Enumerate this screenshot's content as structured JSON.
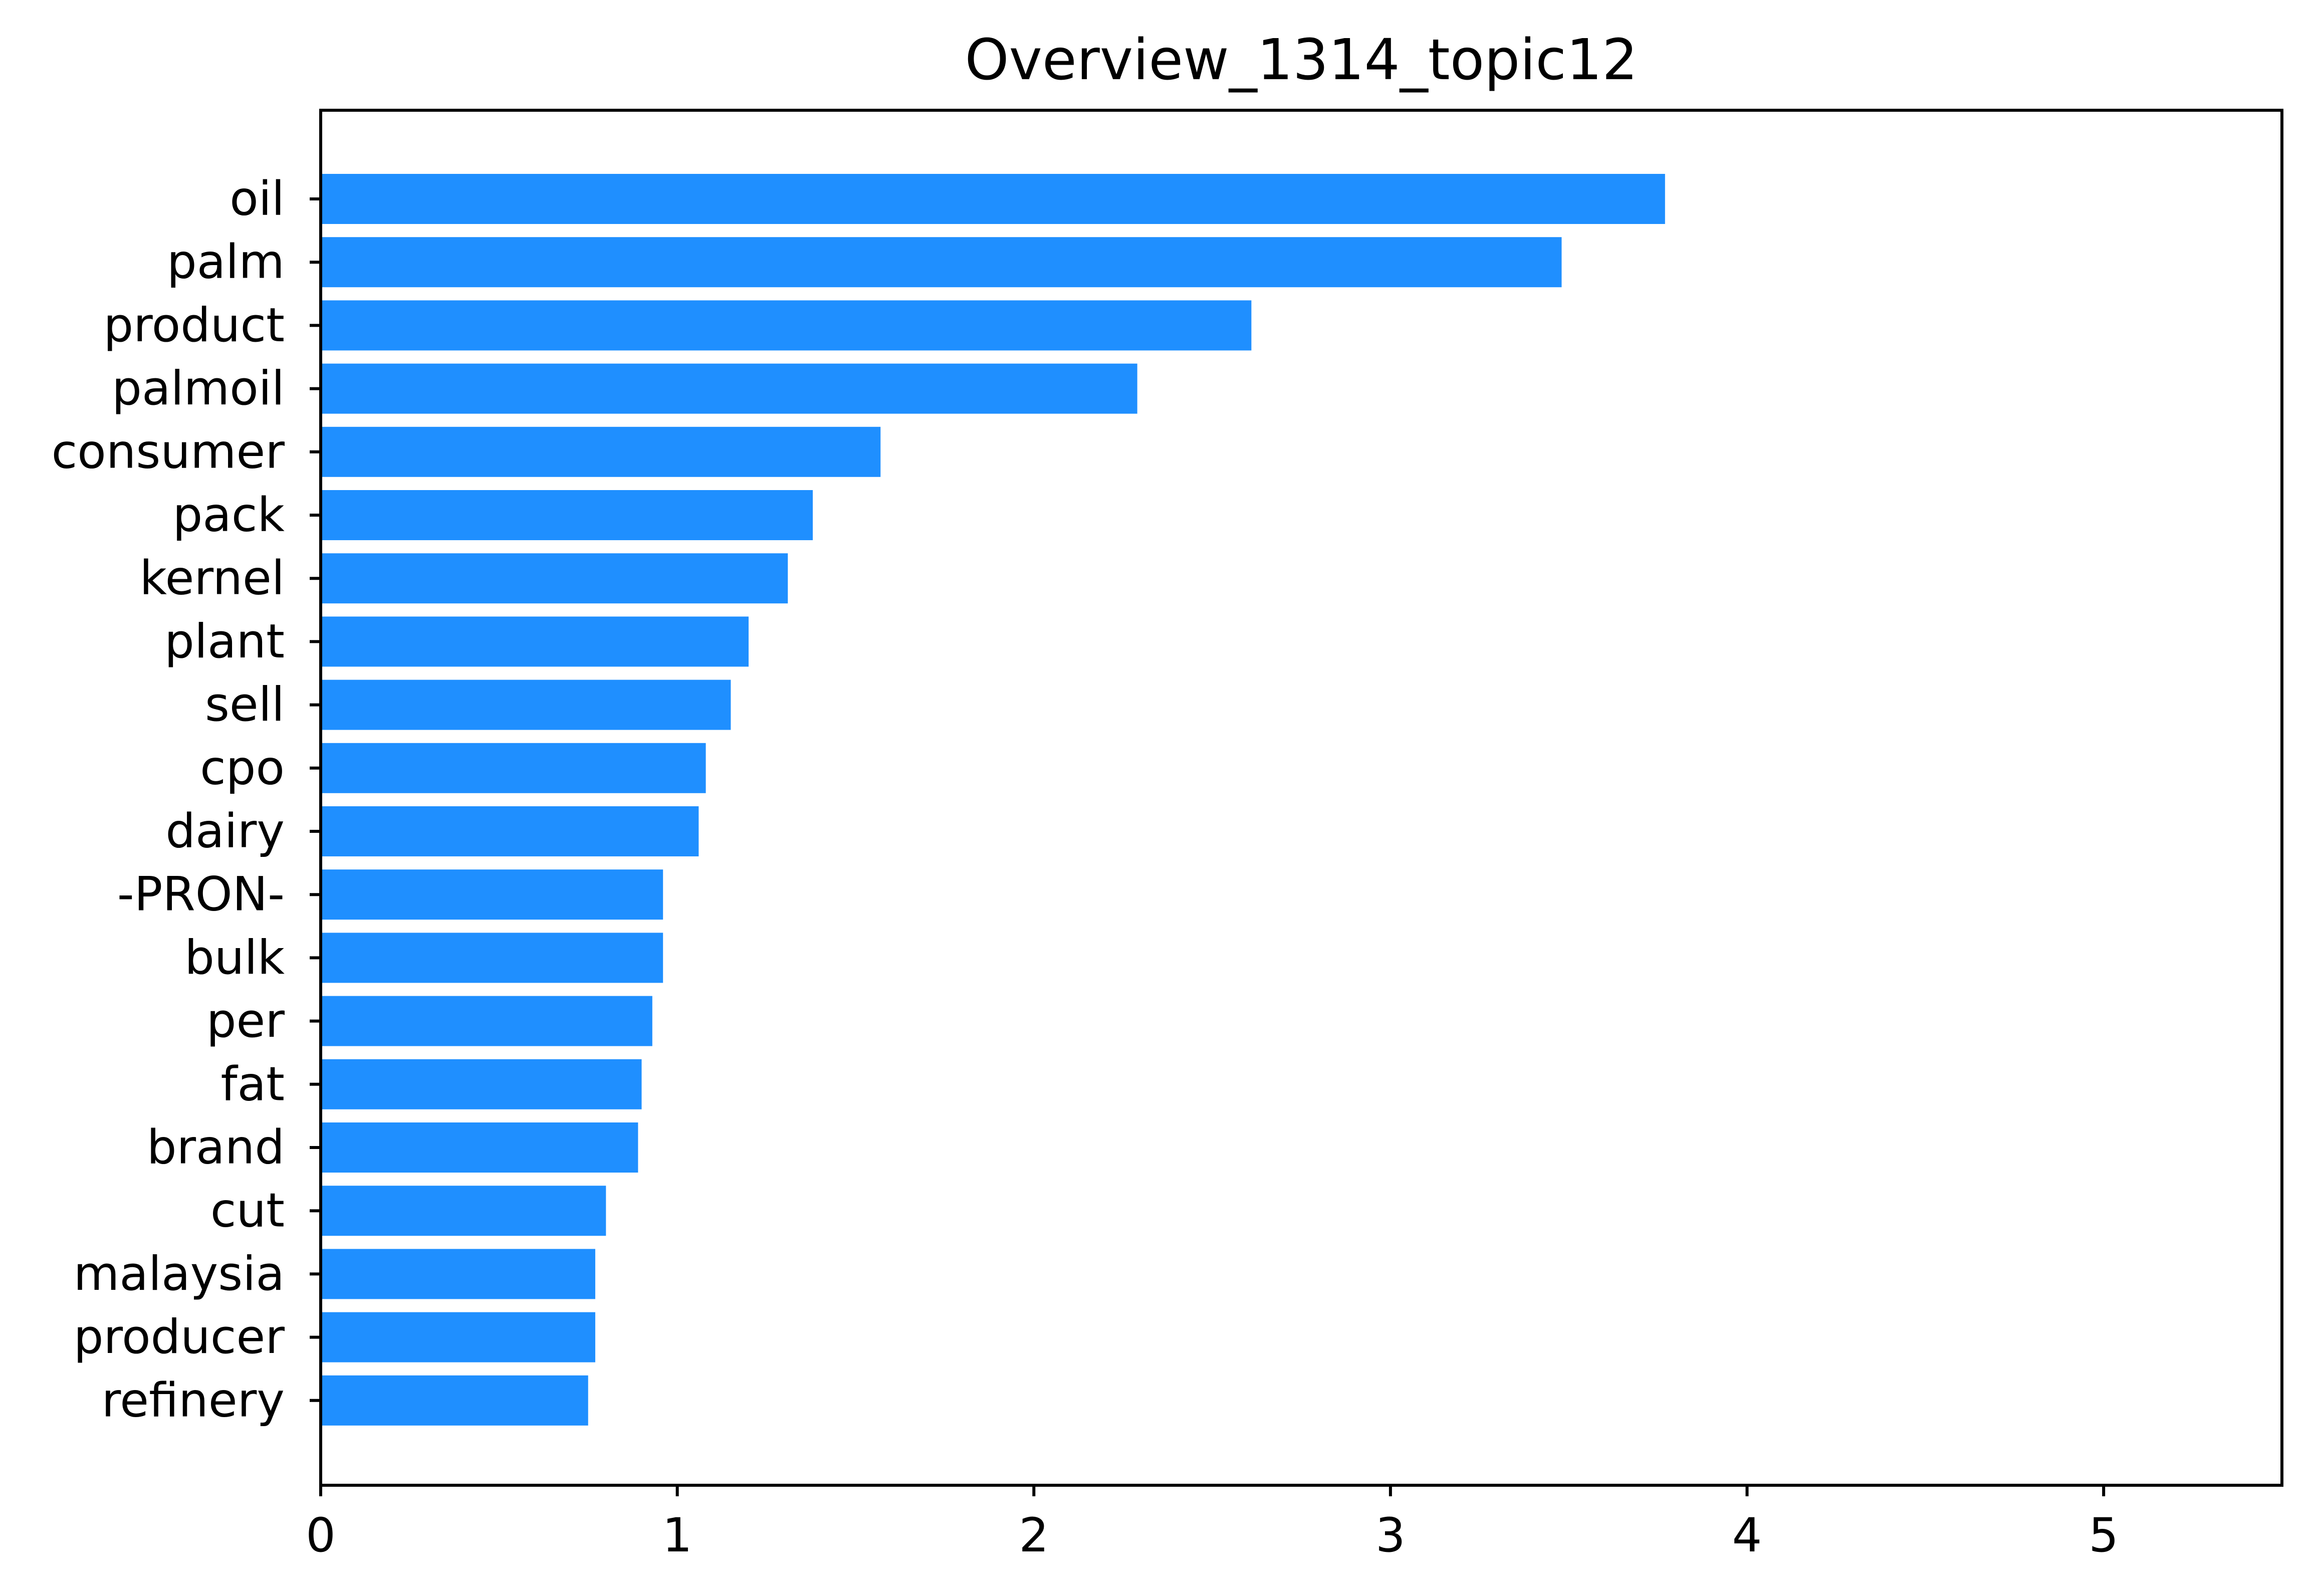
{
  "chart_data": {
    "type": "bar",
    "orientation": "horizontal",
    "title": "Overview_1314_topic12",
    "xlabel": "",
    "ylabel": "",
    "categories": [
      "oil",
      "palm",
      "product",
      "palmoil",
      "consumer",
      "pack",
      "kernel",
      "plant",
      "sell",
      "cpo",
      "dairy",
      "-PRON-",
      "bulk",
      "per",
      "fat",
      "brand",
      "cut",
      "malaysia",
      "producer",
      "refinery"
    ],
    "values": [
      3.77,
      3.48,
      2.61,
      2.29,
      1.57,
      1.38,
      1.31,
      1.2,
      1.15,
      1.08,
      1.06,
      0.96,
      0.96,
      0.93,
      0.9,
      0.89,
      0.8,
      0.77,
      0.77,
      0.75
    ],
    "xlim": [
      0,
      5.5
    ],
    "xticks": [
      "0",
      "1",
      "2",
      "3",
      "4",
      "5"
    ],
    "grid": false,
    "bar_color": "#1f8fff"
  }
}
